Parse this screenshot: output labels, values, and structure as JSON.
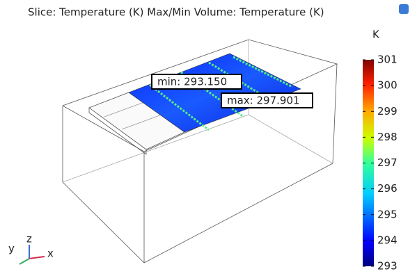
{
  "chart_data": {
    "type": "slice",
    "title": "Slice: Temperature (K)  Max/Min Volume: Temperature (K)",
    "colorbar_unit": "K",
    "clim": [
      293,
      301
    ],
    "cticks": [
      293,
      294,
      295,
      296,
      297,
      298,
      299,
      300,
      301
    ],
    "annotations": [
      {
        "value": 293.15,
        "label": "min: 293.150"
      },
      {
        "value": 297.901,
        "label": "max: 297.901"
      }
    ],
    "axes": [
      "x",
      "y",
      "z"
    ]
  }
}
